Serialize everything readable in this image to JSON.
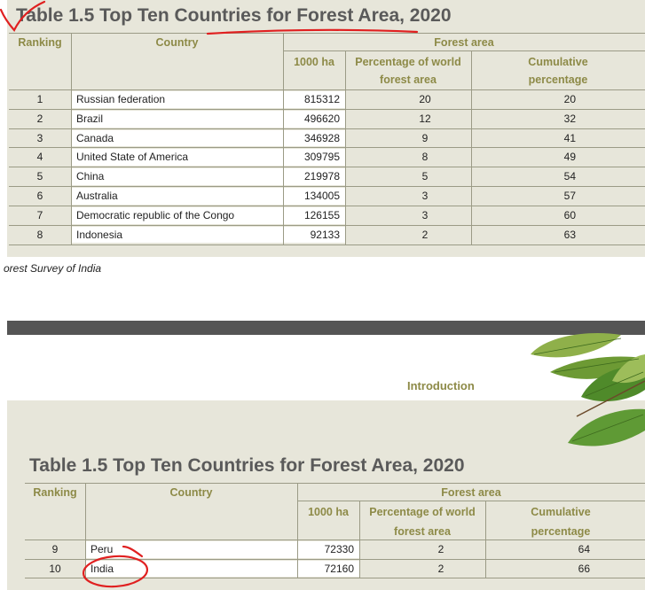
{
  "top_table": {
    "title": "Table 1.5 Top Ten Countries for Forest Area, 2020",
    "headers": {
      "ranking": "Ranking",
      "country": "Country",
      "forest_area": "Forest area",
      "ha": "1000 ha",
      "pct_line1": "Percentage of world",
      "pct_line2": "forest area",
      "cum_line1": "Cumulative",
      "cum_line2": "percentage"
    },
    "rows": [
      {
        "rank": "1",
        "country": "Russian federation",
        "ha": "815312",
        "pct": "20",
        "cum": "20"
      },
      {
        "rank": "2",
        "country": "Brazil",
        "ha": "496620",
        "pct": "12",
        "cum": "32"
      },
      {
        "rank": "3",
        "country": "Canada",
        "ha": "346928",
        "pct": "9",
        "cum": "41"
      },
      {
        "rank": "4",
        "country": "United State of America",
        "ha": "309795",
        "pct": "8",
        "cum": "49"
      },
      {
        "rank": "5",
        "country": "China",
        "ha": "219978",
        "pct": "5",
        "cum": "54"
      },
      {
        "rank": "6",
        "country": "Australia",
        "ha": "134005",
        "pct": "3",
        "cum": "57"
      },
      {
        "rank": "7",
        "country": "Democratic republic of the Congo",
        "ha": "126155",
        "pct": "3",
        "cum": "60"
      },
      {
        "rank": "8",
        "country": "Indonesia",
        "ha": "92133",
        "pct": "2",
        "cum": "63"
      }
    ]
  },
  "source_note": "orest Survey of India",
  "running_header": "Introduction",
  "bottom_table": {
    "title": "Table 1.5 Top Ten Countries for Forest Area, 2020",
    "headers": {
      "ranking": "Ranking",
      "country": "Country",
      "forest_area": "Forest area",
      "ha": "1000 ha",
      "pct_line1": "Percentage of world",
      "pct_line2": "forest area",
      "cum_line1": "Cumulative",
      "cum_line2": "percentage"
    },
    "rows": [
      {
        "rank": "9",
        "country": "Peru",
        "ha": "72330",
        "pct": "2",
        "cum": "64"
      },
      {
        "rank": "10",
        "country": "India",
        "ha": "72160",
        "pct": "2",
        "cum": "66"
      }
    ]
  },
  "colors": {
    "panel": "#e7e6da",
    "header_text": "#8d8a47",
    "title_text": "#5a5a5a",
    "annotation": "#e02020"
  }
}
